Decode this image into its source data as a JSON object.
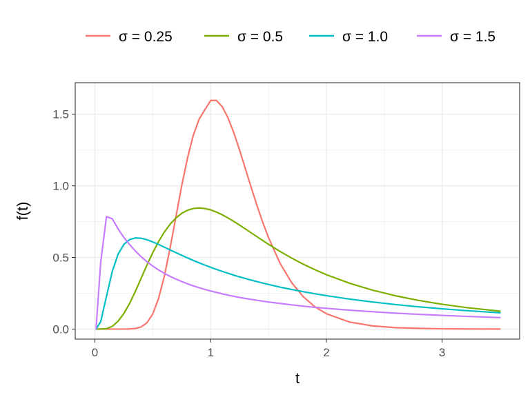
{
  "chart_data": {
    "type": "line",
    "xlabel": "t",
    "ylabel": "f(t)",
    "xlim": [
      -0.17,
      3.67
    ],
    "ylim": [
      -0.07,
      1.72
    ],
    "x_ticks": [
      0,
      1,
      2,
      3
    ],
    "x_tick_labels": [
      "0",
      "1",
      "2",
      "3"
    ],
    "y_ticks": [
      0.0,
      0.5,
      1.0,
      1.5
    ],
    "y_tick_labels": [
      "0.0",
      "0.5",
      "1.0",
      "1.5"
    ],
    "grid": true,
    "legend_position": "top",
    "x": [
      0.01,
      0.05,
      0.1,
      0.15,
      0.2,
      0.25,
      0.3,
      0.35,
      0.4,
      0.45,
      0.5,
      0.55,
      0.6,
      0.65,
      0.7,
      0.75,
      0.8,
      0.85,
      0.9,
      0.95,
      1.0,
      1.05,
      1.1,
      1.15,
      1.2,
      1.25,
      1.3,
      1.35,
      1.4,
      1.45,
      1.5,
      1.6,
      1.7,
      1.8,
      1.9,
      2.0,
      2.2,
      2.4,
      2.6,
      2.8,
      3.0,
      3.2,
      3.5
    ],
    "series": [
      {
        "name": "σ = 0.25",
        "color": "#F8766D",
        "values": [
          0,
          0,
          0,
          0,
          0,
          0,
          0.001,
          0.004,
          0.015,
          0.044,
          0.106,
          0.213,
          0.369,
          0.566,
          0.784,
          1.0,
          1.194,
          1.352,
          1.465,
          1.531,
          1.596,
          1.596,
          1.553,
          1.475,
          1.371,
          1.25,
          1.12,
          0.99,
          0.864,
          0.746,
          0.639,
          0.459,
          0.324,
          0.226,
          0.156,
          0.107,
          0.049,
          0.022,
          0.01,
          0.005,
          0.002,
          0.001,
          0.0003
        ]
      },
      {
        "name": "σ = 0.5",
        "color": "#7CAE00",
        "values": [
          0,
          0.0001,
          0.0029,
          0.0189,
          0.0547,
          0.1083,
          0.1788,
          0.2638,
          0.3555,
          0.4472,
          0.5333,
          0.6107,
          0.6773,
          0.7322,
          0.7757,
          0.8079,
          0.8297,
          0.8417,
          0.8455,
          0.8418,
          0.8322,
          0.817,
          0.7979,
          0.7759,
          0.7517,
          0.7259,
          0.6993,
          0.6722,
          0.6451,
          0.6183,
          0.5919,
          0.5418,
          0.4955,
          0.4532,
          0.4147,
          0.38,
          0.3201,
          0.2715,
          0.232,
          0.1996,
          0.1732,
          0.1511,
          0.1249
        ]
      },
      {
        "name": "σ = 1.0",
        "color": "#00BFC4",
        "values": [
          0.0001,
          0.0509,
          0.2281,
          0.402,
          0.5219,
          0.5909,
          0.6247,
          0.6362,
          0.634,
          0.6237,
          0.6085,
          0.5908,
          0.572,
          0.5528,
          0.5337,
          0.515,
          0.4969,
          0.4794,
          0.4626,
          0.4466,
          0.4313,
          0.4167,
          0.4028,
          0.3895,
          0.3768,
          0.3647,
          0.3531,
          0.342,
          0.3314,
          0.3213,
          0.3115,
          0.2932,
          0.2764,
          0.2609,
          0.2466,
          0.2333,
          0.2095,
          0.1889,
          0.171,
          0.1553,
          0.1415,
          0.1294,
          0.1137
        ]
      },
      {
        "name": "σ = 1.5",
        "color": "#C77CFF",
        "values": [
          0.0001,
          0.466,
          0.785,
          0.77,
          0.7,
          0.64,
          0.59,
          0.545,
          0.505,
          0.47,
          0.44,
          0.413,
          0.389,
          0.368,
          0.349,
          0.332,
          0.316,
          0.302,
          0.289,
          0.277,
          0.266,
          0.256,
          0.246,
          0.237,
          0.229,
          0.221,
          0.214,
          0.207,
          0.201,
          0.195,
          0.189,
          0.179,
          0.169,
          0.16,
          0.152,
          0.145,
          0.132,
          0.121,
          0.111,
          0.103,
          0.0955,
          0.089,
          0.08
        ]
      }
    ]
  }
}
